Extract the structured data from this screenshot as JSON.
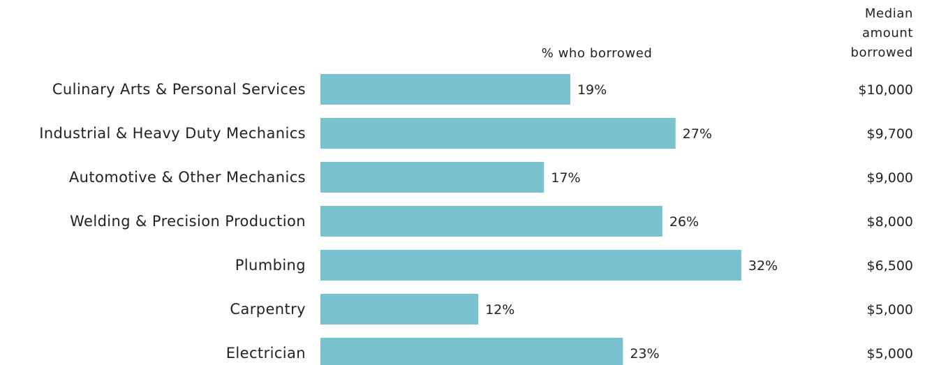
{
  "chart_data": {
    "type": "bar",
    "orientation": "horizontal",
    "categories": [
      "Culinary Arts & Personal Services",
      "Industrial & Heavy Duty Mechanics",
      "Automotive & Other Mechanics",
      "Welding & Precision Production",
      "Plumbing",
      "Carpentry",
      "Electrician"
    ],
    "series": [
      {
        "name": "% who borrowed",
        "values": [
          19,
          27,
          17,
          26,
          32,
          12,
          23
        ]
      }
    ],
    "value_labels": [
      "19%",
      "27%",
      "17%",
      "26%",
      "32%",
      "12%",
      "23%"
    ],
    "median_amount_borrowed": [
      "$10,000",
      "$9,700",
      "$9,000",
      "$8,000",
      "$6,500",
      "$5,000",
      "$5,000"
    ],
    "headers": {
      "percent": "% who borrowed",
      "median": [
        "Median",
        "amount",
        "borrowed"
      ]
    },
    "xlim": [
      0,
      32
    ],
    "bar_color": "#79c3d0",
    "grid": false,
    "legend": "none"
  }
}
